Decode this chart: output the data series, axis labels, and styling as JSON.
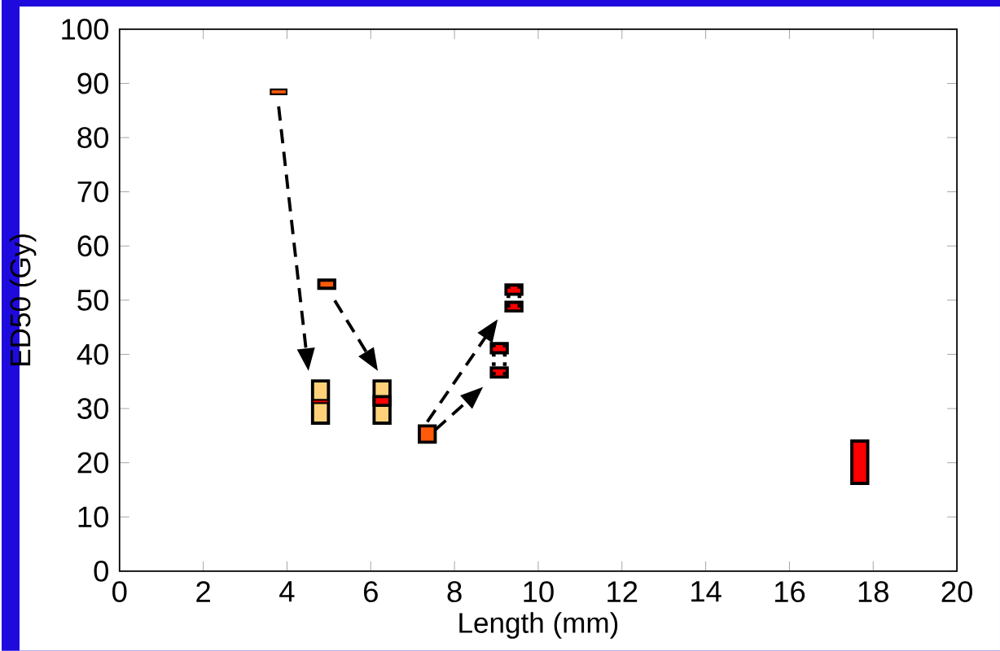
{
  "chart_data": {
    "type": "bar",
    "xlabel": "Length (mm)",
    "ylabel": "ED50 (Gy)",
    "xlim": [
      0,
      20
    ],
    "xticks": [
      0,
      2,
      4,
      6,
      8,
      10,
      12,
      14,
      16,
      18,
      20
    ],
    "ylim": [
      0,
      100
    ],
    "yticks": [
      0,
      10,
      20,
      30,
      40,
      50,
      60,
      70,
      80,
      90,
      100
    ],
    "series": [
      {
        "color": "#ff5a0a",
        "x": [
          3.8,
          4.95,
          7.35
        ],
        "base": [
          88.0,
          52.2,
          23.8
        ],
        "values": [
          0.9,
          1.5,
          3.0
        ]
      },
      {
        "color": "#ffd27a",
        "x": [
          4.8,
          6.27
        ],
        "base": [
          27.3,
          27.3
        ],
        "values": [
          7.8,
          7.8
        ]
      },
      {
        "color": "#ff0000",
        "x": [
          4.8,
          6.27,
          9.07,
          9.42,
          17.68
        ],
        "base": [
          31.0,
          30.6,
          35.8,
          48.0,
          16.2
        ],
        "values": [
          0.6,
          1.6,
          1.7,
          1.6,
          7.8
        ]
      },
      {
        "color": "#ff0000",
        "x": [
          9.07,
          9.42
        ],
        "base": [
          40.3,
          51.1
        ],
        "values": [
          1.7,
          1.7
        ]
      }
    ]
  }
}
